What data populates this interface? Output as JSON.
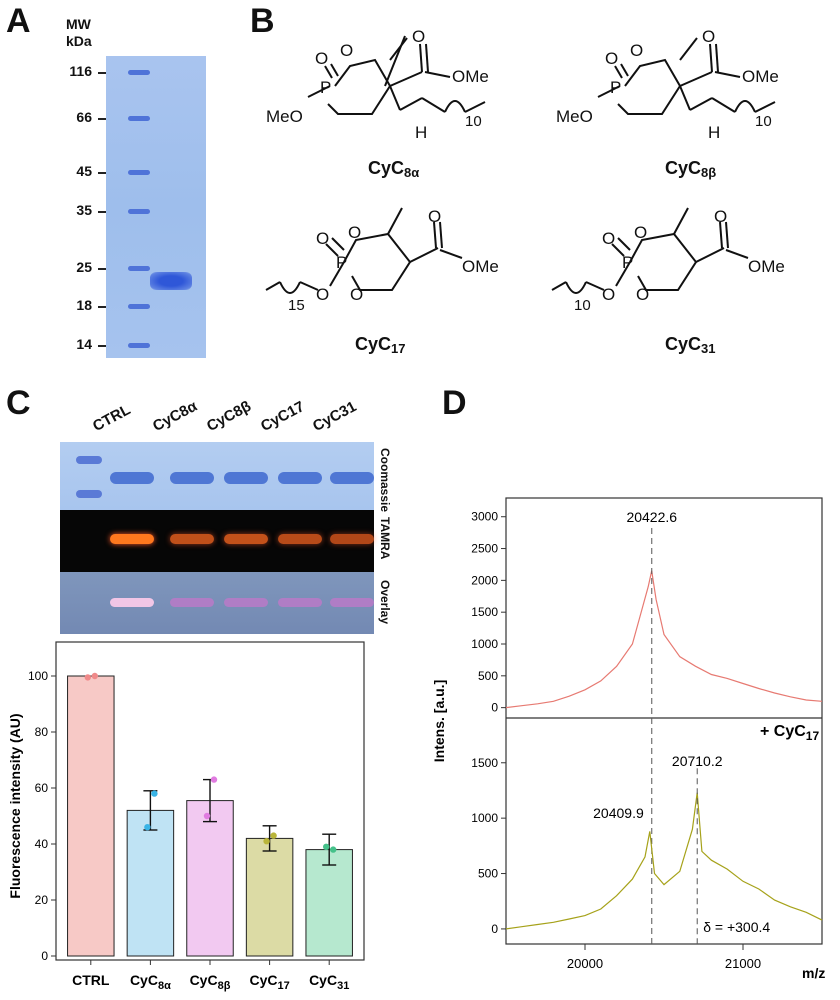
{
  "panels": {
    "a": "A",
    "b": "B",
    "c": "C",
    "d": "D"
  },
  "gel_a": {
    "mw_title_1": "MW",
    "mw_title_2": "kDa",
    "markers": [
      "116",
      "66",
      "45",
      "35",
      "25",
      "18",
      "14"
    ]
  },
  "structures": {
    "cyc8a": {
      "name": "CyC",
      "sub": "8α"
    },
    "cyc8b": {
      "name": "CyC",
      "sub": "8β"
    },
    "cyc17": {
      "name": "CyC",
      "sub": "17"
    },
    "cyc31": {
      "name": "CyC",
      "sub": "31"
    },
    "labels": {
      "meo": "MeO",
      "ome": "OMe",
      "p": "P",
      "o": "O",
      "h": "H",
      "n10": "10",
      "n15": "15"
    }
  },
  "gel_c": {
    "lanes": [
      "CTRL",
      "CyC8α",
      "CyC8β",
      "CyC17",
      "CyC31"
    ],
    "strips": [
      "Coomassie",
      "TAMRA",
      "Overlay"
    ]
  },
  "chart_data": [
    {
      "type": "bar",
      "categories": [
        "CTRL",
        "CyC8α",
        "CyC8β",
        "CyC17",
        "CyC31"
      ],
      "values": [
        100,
        52,
        55.5,
        42,
        38
      ],
      "errors": [
        0,
        7,
        7.5,
        4.5,
        5.5
      ],
      "points": [
        [
          99.5,
          100
        ],
        [
          46,
          58
        ],
        [
          50,
          63
        ],
        [
          41,
          43
        ],
        [
          39,
          38
        ]
      ],
      "colors": [
        "#f7c9c6",
        "#bfe3f4",
        "#f2c9f1",
        "#dcdba5",
        "#b6e8cf"
      ],
      "point_colors": [
        "#f08a8a",
        "#39b4e6",
        "#e07be0",
        "#b9b53a",
        "#45c18a"
      ],
      "ylabel": "Fluorescence intensity (AU)",
      "ylim": [
        0,
        110
      ],
      "yticks": [
        0,
        20,
        40,
        60,
        80,
        100
      ]
    },
    {
      "type": "line",
      "name": "spectrum-top",
      "color": "#e77a72",
      "peak_label": "20422.6",
      "peak_x": 20422.6,
      "ylabel": "Intens. [a.u.]",
      "xlabel": "m/z",
      "xlim": [
        19500,
        21500
      ],
      "ylim": [
        -100,
        3200
      ],
      "yticks": [
        0,
        500,
        1000,
        1500,
        2000,
        2500,
        3000
      ],
      "x": [
        19500,
        19600,
        19700,
        19800,
        19900,
        20000,
        20100,
        20200,
        20300,
        20350,
        20400,
        20422,
        20450,
        20500,
        20600,
        20700,
        20800,
        20900,
        21000,
        21100,
        21200,
        21300,
        21400,
        21500
      ],
      "y": [
        0,
        30,
        60,
        100,
        180,
        280,
        420,
        650,
        1000,
        1450,
        1900,
        2150,
        1700,
        1150,
        800,
        650,
        520,
        460,
        380,
        300,
        230,
        170,
        120,
        100
      ]
    },
    {
      "type": "line",
      "name": "spectrum-bottom",
      "color": "#a6a21a",
      "annotation": "+ CyC17",
      "annotation_sub": "17",
      "peak_labels": [
        "20409.9",
        "20710.2"
      ],
      "peak_x": [
        20409.9,
        20710.2
      ],
      "delta_label": "δ = +300.4",
      "xlabel": "m/z",
      "xlim": [
        19500,
        21500
      ],
      "ylim": [
        -100,
        1850
      ],
      "yticks": [
        0,
        500,
        1000,
        1500
      ],
      "xticks": [
        20000,
        21000
      ],
      "x": [
        19500,
        19600,
        19700,
        19800,
        19900,
        20000,
        20100,
        20200,
        20300,
        20380,
        20410,
        20440,
        20500,
        20600,
        20680,
        20710,
        20740,
        20800,
        20900,
        21000,
        21100,
        21200,
        21300,
        21400,
        21500
      ],
      "y": [
        0,
        20,
        40,
        60,
        90,
        120,
        180,
        300,
        450,
        650,
        880,
        500,
        400,
        520,
        900,
        1230,
        700,
        620,
        540,
        430,
        360,
        260,
        200,
        150,
        80
      ]
    }
  ]
}
